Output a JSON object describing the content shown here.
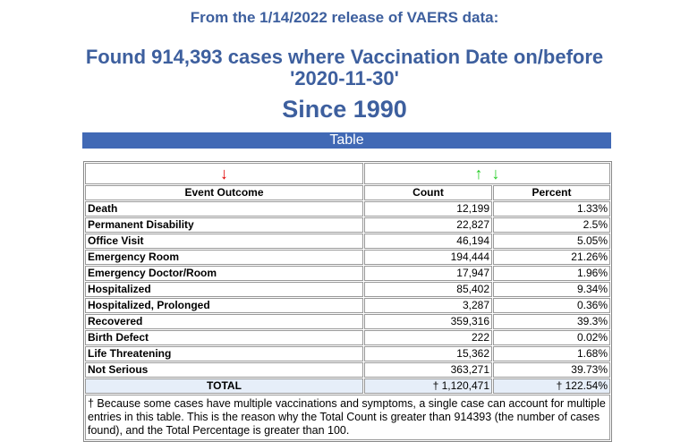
{
  "header": {
    "line1": "From the 1/14/2022 release of VAERS data:",
    "line2": "Found 914,393 cases where Vaccination Date on/before",
    "line2b": "'2020-11-30'",
    "line3": "Since 1990"
  },
  "table_label": "Table",
  "sort_icons": {
    "outcome": "↓",
    "count_up": "↑",
    "count_down": "↓"
  },
  "colors": {
    "accent": "#4169b5",
    "sort_red": "#e00000",
    "sort_green": "#22cc22"
  },
  "columns": [
    "Event Outcome",
    "Count",
    "Percent"
  ],
  "rows": [
    {
      "outcome": "Death",
      "count": "12,199",
      "percent": "1.33%"
    },
    {
      "outcome": "Permanent Disability",
      "count": "22,827",
      "percent": "2.5%"
    },
    {
      "outcome": "Office Visit",
      "count": "46,194",
      "percent": "5.05%"
    },
    {
      "outcome": "Emergency Room",
      "count": "194,444",
      "percent": "21.26%"
    },
    {
      "outcome": "Emergency Doctor/Room",
      "count": "17,947",
      "percent": "1.96%"
    },
    {
      "outcome": "Hospitalized",
      "count": "85,402",
      "percent": "9.34%"
    },
    {
      "outcome": "Hospitalized, Prolonged",
      "count": "3,287",
      "percent": "0.36%"
    },
    {
      "outcome": "Recovered",
      "count": "359,316",
      "percent": "39.3%"
    },
    {
      "outcome": "Birth Defect",
      "count": "222",
      "percent": "0.02%"
    },
    {
      "outcome": "Life Threatening",
      "count": "15,362",
      "percent": "1.68%"
    },
    {
      "outcome": "Not Serious",
      "count": "363,271",
      "percent": "39.73%"
    }
  ],
  "total": {
    "label": "TOTAL",
    "count": "† 1,120,471",
    "percent": "† 122.54%"
  },
  "footnote": "† Because some cases have multiple vaccinations and symptoms, a single case can account for multiple entries in this table. This is the reason why the Total Count is greater than 914393 (the number of cases found), and the Total Percentage is greater than 100."
}
